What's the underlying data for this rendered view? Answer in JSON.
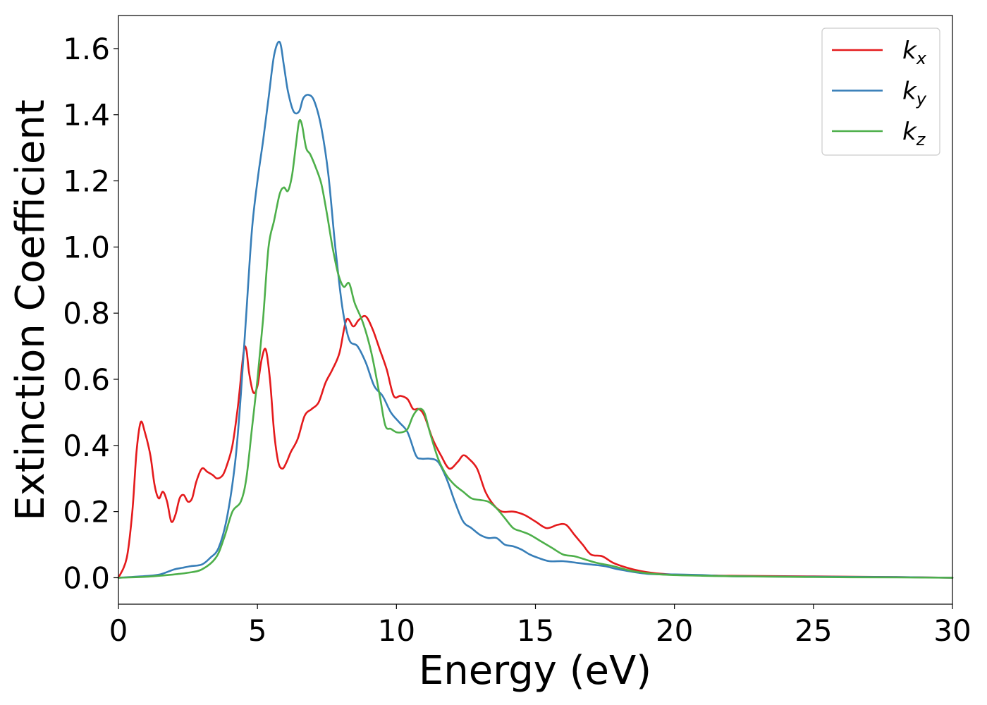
{
  "chart_data": {
    "type": "line",
    "xlabel": "Energy (eV)",
    "ylabel": "Extinction Coefficient",
    "xlim": [
      0,
      30
    ],
    "ylim": [
      -0.08,
      1.7
    ],
    "xticks": [
      0,
      5,
      10,
      15,
      20,
      25,
      30
    ],
    "xtick_labels": [
      "0",
      "5",
      "10",
      "15",
      "20",
      "25",
      "30"
    ],
    "yticks": [
      0.0,
      0.2,
      0.4,
      0.6,
      0.8,
      1.0,
      1.2,
      1.4,
      1.6
    ],
    "ytick_labels": [
      "0.0",
      "0.2",
      "0.4",
      "0.6",
      "0.8",
      "1.0",
      "1.2",
      "1.4",
      "1.6"
    ],
    "grid": false,
    "legend_position": "top-right",
    "series": [
      {
        "name": "k_x",
        "label_main": "k",
        "label_sub": "x",
        "color": "#e41a1c",
        "x": [
          0,
          0.3,
          0.5,
          0.65,
          0.8,
          0.95,
          1.15,
          1.3,
          1.45,
          1.6,
          1.75,
          1.9,
          2.05,
          2.2,
          2.35,
          2.5,
          2.65,
          2.8,
          3.0,
          3.2,
          3.4,
          3.55,
          3.75,
          3.9,
          4.1,
          4.3,
          4.5,
          4.6,
          4.7,
          4.85,
          5.0,
          5.15,
          5.3,
          5.45,
          5.6,
          5.75,
          5.9,
          6.05,
          6.2,
          6.45,
          6.7,
          6.95,
          7.2,
          7.45,
          7.7,
          7.95,
          8.2,
          8.45,
          8.65,
          8.9,
          9.15,
          9.4,
          9.65,
          9.9,
          10.15,
          10.4,
          10.6,
          10.8,
          11.0,
          11.3,
          11.6,
          11.9,
          12.2,
          12.4,
          12.6,
          12.9,
          13.2,
          13.5,
          13.8,
          14.2,
          14.6,
          15.0,
          15.4,
          15.8,
          16.1,
          16.4,
          16.7,
          17.0,
          17.4,
          17.8,
          18.3,
          18.8,
          19.5,
          20.5,
          22,
          25,
          28,
          30
        ],
        "y": [
          0.0,
          0.06,
          0.2,
          0.38,
          0.47,
          0.44,
          0.37,
          0.28,
          0.24,
          0.26,
          0.23,
          0.17,
          0.19,
          0.24,
          0.25,
          0.23,
          0.24,
          0.29,
          0.33,
          0.32,
          0.31,
          0.3,
          0.31,
          0.34,
          0.4,
          0.52,
          0.68,
          0.69,
          0.62,
          0.56,
          0.58,
          0.66,
          0.69,
          0.6,
          0.44,
          0.35,
          0.33,
          0.35,
          0.38,
          0.42,
          0.49,
          0.51,
          0.53,
          0.59,
          0.63,
          0.68,
          0.78,
          0.76,
          0.78,
          0.79,
          0.75,
          0.69,
          0.63,
          0.55,
          0.55,
          0.54,
          0.51,
          0.51,
          0.49,
          0.42,
          0.37,
          0.33,
          0.35,
          0.37,
          0.36,
          0.33,
          0.26,
          0.22,
          0.2,
          0.2,
          0.19,
          0.17,
          0.15,
          0.16,
          0.16,
          0.13,
          0.1,
          0.07,
          0.065,
          0.045,
          0.03,
          0.02,
          0.012,
          0.008,
          0.006,
          0.004,
          0.002,
          0.0
        ]
      },
      {
        "name": "k_y",
        "label_main": "k",
        "label_sub": "y",
        "color": "#377eb8",
        "x": [
          0,
          1.0,
          1.5,
          2.0,
          2.3,
          2.6,
          3.0,
          3.3,
          3.6,
          3.9,
          4.2,
          4.4,
          4.6,
          4.8,
          5.0,
          5.2,
          5.4,
          5.6,
          5.8,
          5.95,
          6.1,
          6.3,
          6.5,
          6.65,
          6.85,
          7.05,
          7.3,
          7.55,
          7.8,
          8.05,
          8.3,
          8.6,
          8.9,
          9.2,
          9.5,
          9.8,
          10.1,
          10.4,
          10.7,
          10.9,
          11.2,
          11.5,
          11.8,
          12.1,
          12.4,
          12.7,
          13.0,
          13.3,
          13.6,
          13.9,
          14.2,
          14.5,
          14.8,
          15.1,
          15.5,
          16.0,
          16.5,
          17.0,
          17.5,
          18.0,
          19.0,
          20.0,
          21.0,
          21.5,
          22.5,
          25,
          28,
          30
        ],
        "y": [
          0.0,
          0.005,
          0.01,
          0.025,
          0.03,
          0.035,
          0.04,
          0.06,
          0.09,
          0.18,
          0.35,
          0.55,
          0.8,
          1.05,
          1.2,
          1.32,
          1.45,
          1.58,
          1.62,
          1.55,
          1.47,
          1.41,
          1.41,
          1.45,
          1.46,
          1.44,
          1.36,
          1.22,
          1.0,
          0.82,
          0.72,
          0.7,
          0.65,
          0.58,
          0.55,
          0.5,
          0.47,
          0.44,
          0.37,
          0.36,
          0.36,
          0.35,
          0.3,
          0.23,
          0.17,
          0.15,
          0.13,
          0.12,
          0.12,
          0.1,
          0.095,
          0.085,
          0.07,
          0.06,
          0.05,
          0.05,
          0.045,
          0.04,
          0.035,
          0.025,
          0.012,
          0.01,
          0.008,
          0.006,
          0.004,
          0.003,
          0.002,
          0.0
        ]
      },
      {
        "name": "k_z",
        "label_main": "k",
        "label_sub": "z",
        "color": "#4daf4a",
        "x": [
          0,
          1.0,
          2.0,
          2.5,
          3.0,
          3.5,
          3.8,
          4.1,
          4.4,
          4.6,
          4.8,
          5.0,
          5.2,
          5.4,
          5.6,
          5.8,
          5.95,
          6.1,
          6.25,
          6.4,
          6.5,
          6.6,
          6.75,
          6.9,
          7.1,
          7.3,
          7.5,
          7.7,
          7.9,
          8.1,
          8.3,
          8.5,
          8.8,
          9.1,
          9.4,
          9.6,
          9.8,
          10.0,
          10.2,
          10.4,
          10.6,
          10.8,
          11.0,
          11.2,
          11.5,
          11.8,
          12.1,
          12.4,
          12.7,
          13.0,
          13.3,
          13.6,
          13.9,
          14.2,
          14.5,
          14.8,
          15.2,
          15.6,
          16.0,
          16.4,
          16.8,
          17.2,
          17.8,
          18.5,
          19.5,
          21,
          22.5,
          25,
          28,
          30
        ],
        "y": [
          0.0,
          0.003,
          0.01,
          0.015,
          0.025,
          0.06,
          0.12,
          0.2,
          0.23,
          0.3,
          0.45,
          0.6,
          0.78,
          1.0,
          1.08,
          1.16,
          1.18,
          1.17,
          1.22,
          1.32,
          1.38,
          1.37,
          1.3,
          1.28,
          1.24,
          1.19,
          1.1,
          1.0,
          0.92,
          0.88,
          0.89,
          0.83,
          0.77,
          0.68,
          0.55,
          0.46,
          0.45,
          0.44,
          0.44,
          0.45,
          0.49,
          0.51,
          0.5,
          0.44,
          0.36,
          0.31,
          0.28,
          0.26,
          0.24,
          0.235,
          0.23,
          0.21,
          0.18,
          0.15,
          0.14,
          0.13,
          0.11,
          0.09,
          0.07,
          0.065,
          0.055,
          0.045,
          0.035,
          0.02,
          0.01,
          0.006,
          0.004,
          0.002,
          0.001,
          0.0
        ]
      }
    ]
  }
}
